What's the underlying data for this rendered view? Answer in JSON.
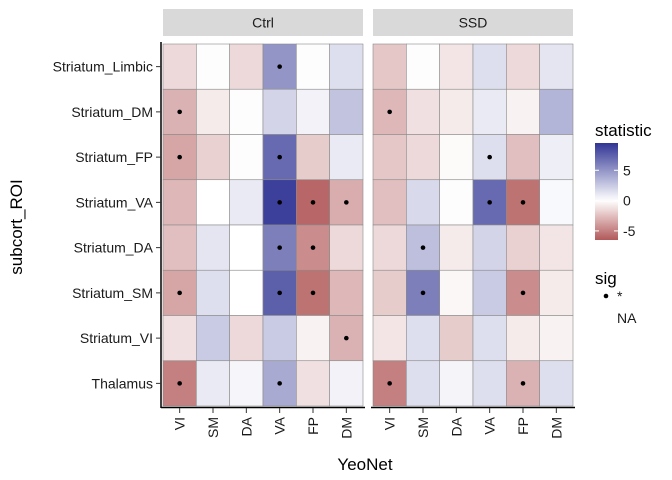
{
  "chart_data": {
    "type": "heatmap",
    "xlabel": "YeoNet",
    "ylabel": "subcort_ROI",
    "x_categories": [
      "VI",
      "SM",
      "DA",
      "VA",
      "FP",
      "DM"
    ],
    "y_categories": [
      "Striatum_Limbic",
      "Striatum_DM",
      "Striatum_FP",
      "Striatum_VA",
      "Striatum_DA",
      "Striatum_SM",
      "Striatum_VI",
      "Thalamus"
    ],
    "facets": [
      {
        "label": "Ctrl",
        "values": [
          [
            -1.5,
            0.1,
            -1.5,
            5.0,
            0.1,
            1.5
          ],
          [
            -3.0,
            -0.8,
            0.1,
            2.0,
            0.6,
            2.8
          ],
          [
            -3.5,
            -1.8,
            0.1,
            7.0,
            -2.0,
            1.0
          ],
          [
            -2.8,
            0.0,
            1.0,
            9.0,
            -6.0,
            -3.2
          ],
          [
            -2.5,
            1.2,
            0.0,
            6.0,
            -4.5,
            -1.5
          ],
          [
            -3.5,
            1.5,
            0.0,
            7.5,
            -5.5,
            -2.8
          ],
          [
            -1.2,
            2.5,
            -1.5,
            2.5,
            -0.5,
            -3.0
          ],
          [
            -5.0,
            1.0,
            0.4,
            4.0,
            -1.2,
            0.6
          ]
        ],
        "sig": [
          [
            false,
            false,
            false,
            true,
            false,
            false
          ],
          [
            true,
            false,
            false,
            false,
            false,
            false
          ],
          [
            true,
            false,
            false,
            true,
            false,
            false
          ],
          [
            false,
            false,
            false,
            true,
            true,
            true
          ],
          [
            false,
            false,
            false,
            true,
            true,
            false
          ],
          [
            true,
            false,
            false,
            true,
            true,
            false
          ],
          [
            false,
            false,
            false,
            false,
            false,
            true
          ],
          [
            true,
            false,
            false,
            true,
            false,
            false
          ]
        ]
      },
      {
        "label": "SSD",
        "values": [
          [
            -2.2,
            0.1,
            -1.0,
            1.5,
            -1.5,
            1.2
          ],
          [
            -2.8,
            -1.2,
            -0.8,
            1.0,
            -0.5,
            3.5
          ],
          [
            -2.2,
            -1.5,
            -0.2,
            1.5,
            -2.5,
            0.8
          ],
          [
            -2.5,
            1.8,
            0.1,
            7.0,
            -5.5,
            0.3
          ],
          [
            -1.5,
            3.0,
            -0.8,
            2.0,
            -1.8,
            -1.0
          ],
          [
            -2.0,
            6.0,
            -0.3,
            2.5,
            -4.5,
            -0.8
          ],
          [
            -1.0,
            1.5,
            -2.0,
            1.5,
            -0.8,
            -0.5
          ],
          [
            -5.0,
            1.5,
            0.5,
            1.5,
            -3.0,
            1.5
          ]
        ],
        "sig": [
          [
            false,
            false,
            false,
            false,
            false,
            false
          ],
          [
            true,
            false,
            false,
            false,
            false,
            false
          ],
          [
            false,
            false,
            false,
            true,
            false,
            false
          ],
          [
            false,
            false,
            false,
            true,
            true,
            false
          ],
          [
            false,
            true,
            false,
            false,
            false,
            false
          ],
          [
            false,
            true,
            false,
            false,
            true,
            false
          ],
          [
            false,
            false,
            false,
            false,
            false,
            false
          ],
          [
            true,
            false,
            false,
            false,
            true,
            false
          ]
        ]
      }
    ],
    "color_scale": {
      "low": "#b2595a",
      "mid": "#ffffff",
      "high": "#313594",
      "limits": [
        -6.5,
        9.5
      ],
      "ticks": [
        5,
        0,
        -5
      ],
      "tick_labels": [
        "5",
        "0",
        "-5"
      ]
    },
    "legend": {
      "fill_title": "statistic",
      "sig_title": "sig",
      "sig_labels": [
        "*",
        "NA"
      ],
      "position": "right"
    }
  }
}
